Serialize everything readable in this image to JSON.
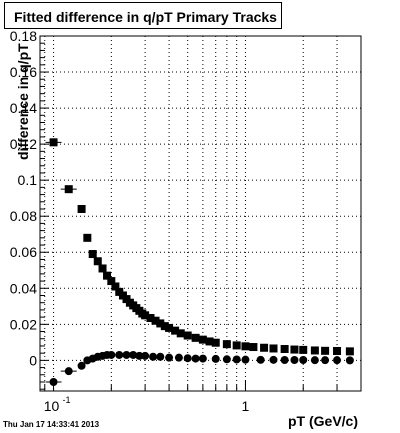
{
  "chart_data": {
    "type": "scatter",
    "title": "Fitted difference in q/pT  Primary Tracks",
    "xlabel": "pT (GeV/c)",
    "ylabel": "difference in q/pT",
    "x_scale": "log",
    "xlim": [
      0.085,
      4.0
    ],
    "ylim": [
      -0.017,
      0.18
    ],
    "grid": true,
    "x_tick_labels": [
      {
        "value": 0.1,
        "base": "10",
        "exponent": "-1"
      },
      {
        "value": 1,
        "base": "1",
        "exponent": ""
      }
    ],
    "y_ticks": [
      0,
      0.02,
      0.04,
      0.06,
      0.08,
      0.1,
      0.12,
      0.14,
      0.16,
      0.18
    ],
    "y_tick_labels": [
      "0",
      "0.02",
      "0.04",
      "0.06",
      "0.08",
      "0.1",
      "0.12",
      "0.14",
      "0.16",
      "0.18"
    ],
    "series": [
      {
        "marker": "square",
        "x": [
          0.1,
          0.12,
          0.14,
          0.15,
          0.16,
          0.17,
          0.18,
          0.19,
          0.2,
          0.21,
          0.22,
          0.23,
          0.24,
          0.25,
          0.26,
          0.27,
          0.28,
          0.29,
          0.3,
          0.32,
          0.34,
          0.36,
          0.38,
          0.4,
          0.43,
          0.46,
          0.5,
          0.55,
          0.6,
          0.65,
          0.7,
          0.8,
          0.9,
          1.0,
          1.1,
          1.25,
          1.4,
          1.6,
          1.8,
          2.0,
          2.3,
          2.6,
          3.0,
          3.5
        ],
        "y": [
          0.121,
          0.095,
          0.084,
          0.068,
          0.059,
          0.055,
          0.051,
          0.047,
          0.044,
          0.041,
          0.038,
          0.036,
          0.034,
          0.032,
          0.0305,
          0.029,
          0.0275,
          0.026,
          0.025,
          0.0235,
          0.022,
          0.0205,
          0.019,
          0.018,
          0.0165,
          0.015,
          0.0138,
          0.0125,
          0.0115,
          0.0105,
          0.0098,
          0.009,
          0.0083,
          0.0078,
          0.0074,
          0.007,
          0.0066,
          0.0063,
          0.006,
          0.0058,
          0.0055,
          0.0053,
          0.0052,
          0.005
        ]
      },
      {
        "marker": "circle",
        "x": [
          0.1,
          0.12,
          0.14,
          0.15,
          0.16,
          0.17,
          0.18,
          0.19,
          0.2,
          0.22,
          0.24,
          0.26,
          0.28,
          0.3,
          0.33,
          0.36,
          0.4,
          0.45,
          0.5,
          0.55,
          0.6,
          0.7,
          0.8,
          0.9,
          1.0,
          1.2,
          1.4,
          1.6,
          1.8,
          2.0,
          2.3,
          2.6,
          3.0,
          3.5
        ],
        "y": [
          -0.012,
          -0.006,
          -0.003,
          0.0,
          0.001,
          0.002,
          0.0025,
          0.003,
          0.003,
          0.003,
          0.003,
          0.003,
          0.0025,
          0.0025,
          0.002,
          0.002,
          0.0015,
          0.0015,
          0.0012,
          0.001,
          0.001,
          0.0008,
          0.0006,
          0.0005,
          0.0004,
          0.0003,
          0.0003,
          0.0002,
          0.0002,
          0.0002,
          0.0001,
          0.0001,
          0.0001,
          0.0
        ]
      }
    ]
  },
  "footer": {
    "timestamp": "Thu Jan 17 14:33:41 2013"
  }
}
